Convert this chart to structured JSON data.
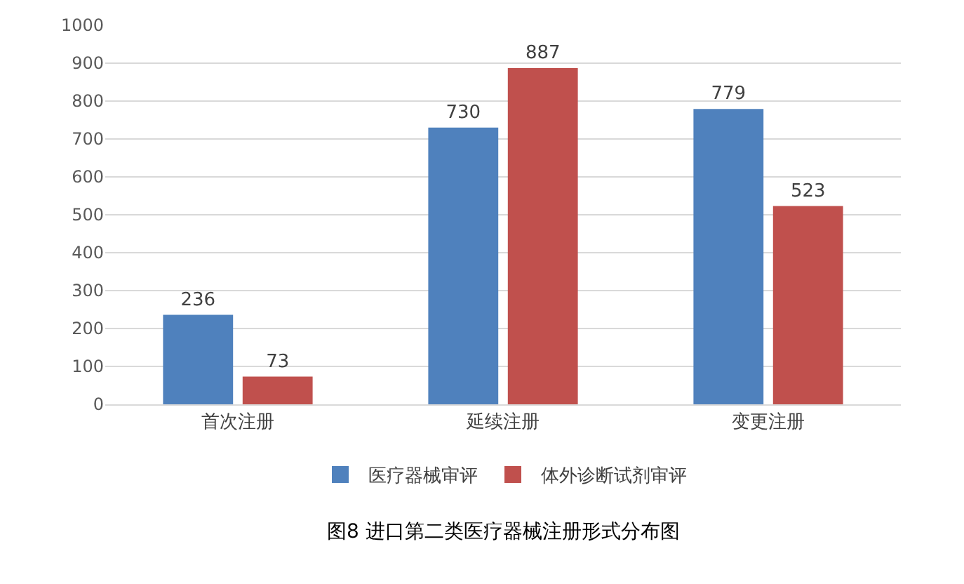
{
  "chart_data": {
    "type": "bar",
    "annotations": [
      "图8 进口第二类医疗器械注册形式分布图"
    ],
    "categories": [
      "首次注册",
      "延续注册",
      "变更注册"
    ],
    "series": [
      {
        "name": "医疗器械审评",
        "color": "#4f81bd",
        "values": [
          236,
          730,
          779
        ]
      },
      {
        "name": "体外诊断试剂审评",
        "color": "#c0504d",
        "values": [
          73,
          887,
          523
        ]
      }
    ],
    "ylim": [
      0,
      1000
    ],
    "yticks": [
      0,
      100,
      200,
      300,
      400,
      500,
      600,
      700,
      800,
      900,
      1000
    ],
    "grid": "y",
    "legend": "bottom",
    "data_labels": true
  }
}
